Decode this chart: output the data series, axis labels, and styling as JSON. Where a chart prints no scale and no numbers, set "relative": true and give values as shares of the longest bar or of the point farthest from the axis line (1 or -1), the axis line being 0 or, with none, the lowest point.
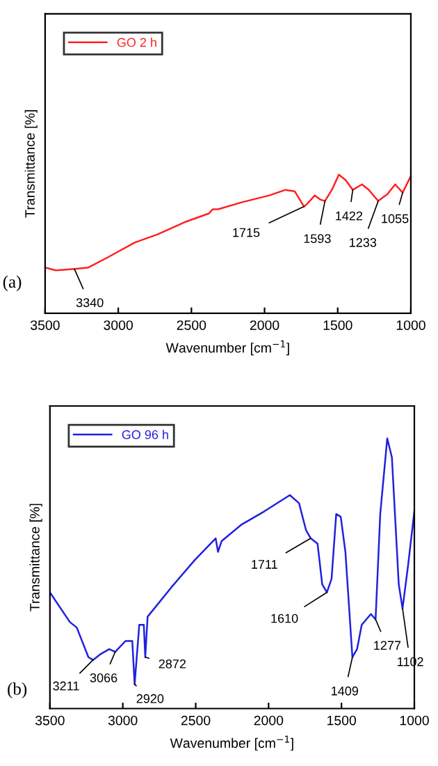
{
  "chart_data": [
    {
      "type": "line",
      "relative": true,
      "xlabel": "Wavenumber [cm$^{−1}$]",
      "ylabel": "Transmittance [%]",
      "xlim": [
        3500,
        1000
      ],
      "xticks": [
        3500,
        3000,
        2500,
        2000,
        1500,
        1000
      ],
      "grid": false,
      "legend": "top left",
      "tick_labels": "x",
      "series": [
        {
          "name": "GO 2 h",
          "color": "#ff2020",
          "x": [
            3500,
            3427,
            3300,
            3205,
            3078,
            2888,
            2729,
            2539,
            2380,
            2355,
            2317,
            2158,
            1968,
            1857,
            1794,
            1730,
            1708,
            1657,
            1619,
            1587,
            1540,
            1492,
            1445,
            1397,
            1334,
            1287,
            1223,
            1160,
            1107,
            1056,
            1000
          ],
          "values": [
            0.33,
            0.31,
            0.32,
            0.33,
            0.4,
            0.51,
            0.57,
            0.66,
            0.72,
            0.75,
            0.75,
            0.8,
            0.85,
            0.89,
            0.88,
            0.77,
            0.79,
            0.85,
            0.82,
            0.81,
            0.89,
            1.0,
            0.96,
            0.89,
            0.93,
            0.89,
            0.81,
            0.86,
            0.93,
            0.87,
            0.99
          ]
        }
      ],
      "annotations": [
        {
          "text": "3340",
          "x": 3300,
          "y": 0.32
        },
        {
          "text": "1715",
          "x": 1730,
          "y": 0.77
        },
        {
          "text": "1593",
          "x": 1587,
          "y": 0.81
        },
        {
          "text": "1422",
          "x": 1397,
          "y": 0.89
        },
        {
          "text": "1233",
          "x": 1223,
          "y": 0.81
        },
        {
          "text": "1055",
          "x": 1056,
          "y": 0.87
        },
        "(a)"
      ]
    },
    {
      "type": "line",
      "relative": true,
      "xlabel": "Wavenumber [cm$^{−1}$]",
      "ylabel": "Transmittance [%]",
      "xlim": [
        3500,
        1000
      ],
      "xticks": [
        3500,
        3000,
        2500,
        2000,
        1500,
        1000
      ],
      "grid": false,
      "legend": "top left",
      "tick_labels": "x",
      "series": [
        {
          "name": "GO 96 h",
          "color": "#2020e0",
          "x": [
            3500,
            3363,
            3316,
            3236,
            3204,
            3157,
            3093,
            3052,
            2982,
            2935,
            2919,
            2887,
            2856,
            2846,
            2830,
            2665,
            2506,
            2363,
            2347,
            2322,
            2188,
            2029,
            1854,
            1791,
            1743,
            1711,
            1664,
            1632,
            1600,
            1568,
            1536,
            1505,
            1473,
            1425,
            1393,
            1361,
            1298,
            1266,
            1234,
            1186,
            1154,
            1107,
            1081,
            1043,
            1000
          ],
          "values": [
            0.43,
            0.32,
            0.3,
            0.19,
            0.18,
            0.2,
            0.22,
            0.21,
            0.25,
            0.25,
            0.09,
            0.31,
            0.31,
            0.19,
            0.34,
            0.45,
            0.55,
            0.63,
            0.58,
            0.62,
            0.68,
            0.73,
            0.79,
            0.76,
            0.66,
            0.63,
            0.61,
            0.46,
            0.43,
            0.48,
            0.72,
            0.71,
            0.58,
            0.19,
            0.22,
            0.31,
            0.35,
            0.33,
            0.72,
            1.0,
            0.93,
            0.46,
            0.37,
            0.53,
            0.73
          ]
        }
      ],
      "annotations": [
        {
          "text": "3211",
          "x": 3204,
          "y": 0.18
        },
        {
          "text": "3066",
          "x": 3052,
          "y": 0.21
        },
        {
          "text": "2920",
          "x": 2919,
          "y": 0.09
        },
        {
          "text": "2872",
          "x": 2846,
          "y": 0.19
        },
        {
          "text": "1711",
          "x": 1711,
          "y": 0.63
        },
        {
          "text": "1610",
          "x": 1600,
          "y": 0.43
        },
        {
          "text": "1409",
          "x": 1425,
          "y": 0.19
        },
        {
          "text": "1277",
          "x": 1266,
          "y": 0.33
        },
        {
          "text": "1102",
          "x": 1081,
          "y": 0.37
        },
        "(b)"
      ]
    }
  ]
}
